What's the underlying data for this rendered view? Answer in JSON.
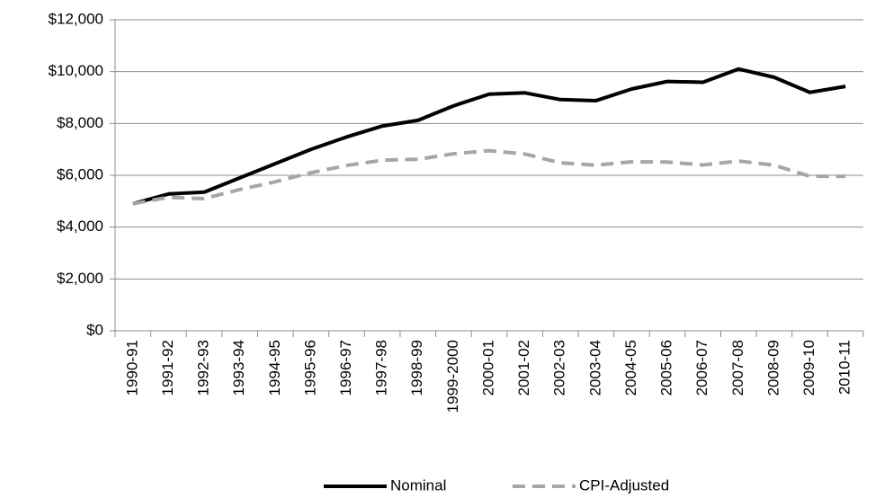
{
  "chart_data": {
    "type": "line",
    "categories": [
      "1990-91",
      "1991-92",
      "1992-93",
      "1993-94",
      "1994-95",
      "1995-96",
      "1996-97",
      "1997-98",
      "1998-99",
      "1999-2000",
      "2000-01",
      "2001-02",
      "2002-03",
      "2003-04",
      "2004-05",
      "2005-06",
      "2006-07",
      "2007-08",
      "2008-09",
      "2009-10",
      "2010-11"
    ],
    "series": [
      {
        "name": "Nominal",
        "color": "#000000",
        "dashed": false,
        "values": [
          4900,
          5280,
          5350,
          5900,
          6450,
          7000,
          7480,
          7900,
          8120,
          8680,
          9130,
          9180,
          8920,
          8880,
          9330,
          9620,
          9590,
          10100,
          9780,
          9200,
          9430
        ]
      },
      {
        "name": "CPI-Adjusted",
        "color": "#a6a6a6",
        "dashed": true,
        "values": [
          4900,
          5150,
          5100,
          5450,
          5750,
          6100,
          6380,
          6580,
          6620,
          6830,
          6950,
          6820,
          6480,
          6390,
          6520,
          6510,
          6400,
          6550,
          6390,
          5960,
          5960
        ]
      }
    ],
    "ylim": [
      0,
      12000
    ],
    "yticks": [
      {
        "value": 0,
        "label": "$0"
      },
      {
        "value": 2000,
        "label": "$2,000"
      },
      {
        "value": 4000,
        "label": "$4,000"
      },
      {
        "value": 6000,
        "label": "$6,000"
      },
      {
        "value": 8000,
        "label": "$8,000"
      },
      {
        "value": 10000,
        "label": "$10,000"
      },
      {
        "value": 12000,
        "label": "$12,000"
      }
    ],
    "grid": true,
    "legend": "bottom"
  }
}
